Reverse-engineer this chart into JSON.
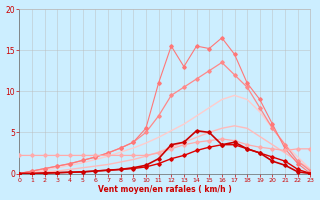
{
  "x": [
    0,
    1,
    2,
    3,
    4,
    5,
    6,
    7,
    8,
    9,
    10,
    11,
    12,
    13,
    14,
    15,
    16,
    17,
    18,
    19,
    20,
    21,
    22,
    23
  ],
  "line_flat_y": [
    2.2,
    2.2,
    2.2,
    2.2,
    2.2,
    2.2,
    2.2,
    2.2,
    2.2,
    2.2,
    2.2,
    2.5,
    3.0,
    3.5,
    3.8,
    4.0,
    4.2,
    4.0,
    3.5,
    3.2,
    3.0,
    2.8,
    3.0,
    3.0
  ],
  "line_diag1_y": [
    0.0,
    0.1,
    0.2,
    0.3,
    0.5,
    0.7,
    0.9,
    1.1,
    1.4,
    1.7,
    2.1,
    2.6,
    3.2,
    3.8,
    4.4,
    5.0,
    5.5,
    5.8,
    5.5,
    4.5,
    3.5,
    2.5,
    1.5,
    0.5
  ],
  "line_diag2_y": [
    0.0,
    0.2,
    0.4,
    0.7,
    1.0,
    1.3,
    1.7,
    2.1,
    2.6,
    3.1,
    3.7,
    4.4,
    5.2,
    6.0,
    7.0,
    8.0,
    9.0,
    9.5,
    9.0,
    7.5,
    5.5,
    3.5,
    2.0,
    0.5
  ],
  "line_med_y": [
    0.0,
    0.3,
    0.6,
    0.9,
    1.2,
    1.6,
    2.0,
    2.5,
    3.1,
    3.8,
    5.0,
    7.0,
    9.5,
    10.5,
    11.5,
    12.5,
    13.5,
    12.0,
    10.5,
    8.0,
    5.5,
    3.5,
    1.5,
    0.3
  ],
  "line_spiky_y": [
    0.0,
    0.3,
    0.6,
    0.9,
    1.2,
    1.6,
    2.0,
    2.5,
    3.1,
    3.8,
    5.5,
    11.0,
    15.5,
    13.0,
    15.5,
    15.2,
    16.5,
    14.5,
    11.0,
    9.0,
    6.0,
    3.0,
    1.2,
    0.0
  ],
  "line_dark_y": [
    0.0,
    0.0,
    0.05,
    0.1,
    0.15,
    0.2,
    0.3,
    0.4,
    0.5,
    0.6,
    0.8,
    1.2,
    1.8,
    2.2,
    2.8,
    3.2,
    3.5,
    3.5,
    3.0,
    2.5,
    2.0,
    1.5,
    0.5,
    0.0
  ],
  "line_dark2_y": [
    0.0,
    0.0,
    0.05,
    0.1,
    0.15,
    0.2,
    0.3,
    0.4,
    0.5,
    0.7,
    1.0,
    1.8,
    3.5,
    3.8,
    5.2,
    5.0,
    3.5,
    3.8,
    3.0,
    2.5,
    1.5,
    1.0,
    0.2,
    0.0
  ],
  "bg_color": "#cceeff",
  "grid_color": "#bbbbbb",
  "color_flat": "#ffaaaa",
  "color_diag1": "#ffbbbb",
  "color_diag2": "#ffcccc",
  "color_med": "#ff8888",
  "color_spiky": "#ff7777",
  "color_dark": "#dd0000",
  "color_dark2": "#cc0000",
  "xlabel": "Vent moyen/en rafales ( km/h )",
  "xlim": [
    0,
    23
  ],
  "ylim": [
    0,
    20
  ],
  "xticks": [
    0,
    1,
    2,
    3,
    4,
    5,
    6,
    7,
    8,
    9,
    10,
    11,
    12,
    13,
    14,
    15,
    16,
    17,
    18,
    19,
    20,
    21,
    22,
    23
  ],
  "yticks": [
    0,
    5,
    10,
    15,
    20
  ],
  "xlabel_color": "#cc0000",
  "tick_color": "#cc0000"
}
